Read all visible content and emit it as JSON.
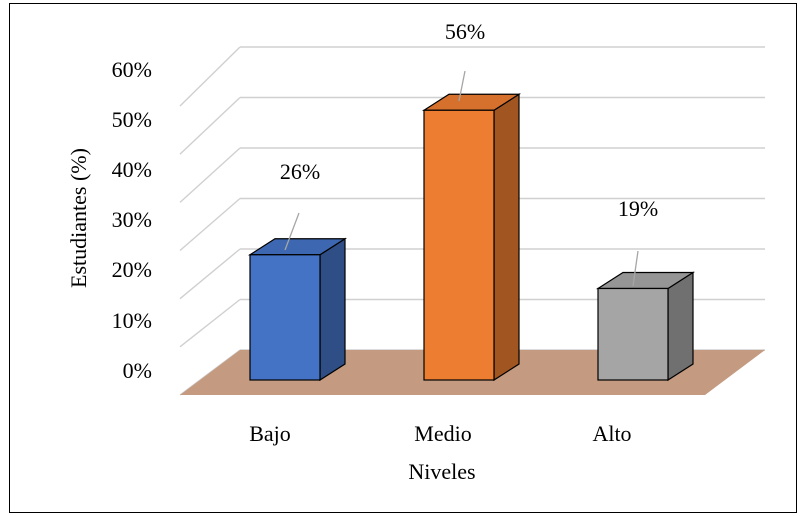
{
  "chart_data": {
    "type": "bar",
    "title": "",
    "xlabel": "Niveles",
    "ylabel": "Estudiantes (%)",
    "categories": [
      "Bajo",
      "Medio",
      "Alto"
    ],
    "values": [
      26,
      56,
      19
    ],
    "data_labels": [
      "26%",
      "56%",
      "19%"
    ],
    "yticks": [
      "0%",
      "10%",
      "20%",
      "30%",
      "40%",
      "50%",
      "60%"
    ],
    "ylim": [
      0,
      60
    ],
    "grid": true,
    "legend": "none",
    "style": "3d-column",
    "colors": {
      "Bajo": "#4472c4",
      "Medio": "#ed7d31",
      "Alto": "#a5a5a5",
      "floor": "#c49a80",
      "gridline": "#d0d0d0"
    }
  }
}
